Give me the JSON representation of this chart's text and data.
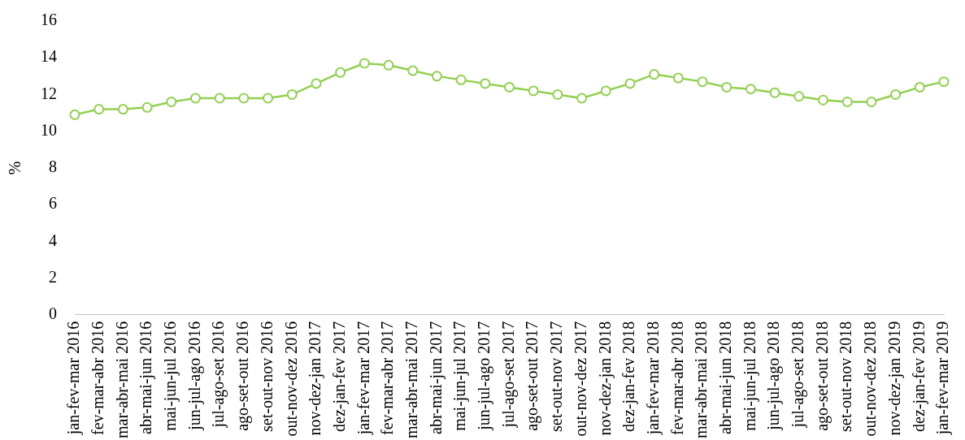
{
  "chart_data": {
    "type": "line",
    "ylabel": "%",
    "categories": [
      "jan-fev-mar 2016",
      "fev-mar-abr 2016",
      "mar-abr-mai 2016",
      "abr-mai-jun 2016",
      "mai-jun-jul 2016",
      "jun-jul-ago 2016",
      "jul-ago-set 2016",
      "ago-set-out 2016",
      "set-out-nov 2016",
      "out-nov-dez 2016",
      "nov-dez-jan 2017",
      "dez-jan-fev 2017",
      "jan-fev-mar 2017",
      "fev-mar-abr 2017",
      "mar-abr-mai 2017",
      "abr-mai-jun 2017",
      "mai-jun-jul 2017",
      "jun-jul-ago 2017",
      "jul-ago-set 2017",
      "ago-set-out 2017",
      "set-out-nov 2017",
      "out-nov-dez 2017",
      "nov-dez-jan 2018",
      "dez-jan-fev 2018",
      "jan-fev-mar 2018",
      "fev-mar-abr 2018",
      "mar-abr-mai 2018",
      "abr-mai-jun 2018",
      "mai-jun-jul 2018",
      "jun-jul-ago 2018",
      "jul-ago-set 2018",
      "ago-set-out 2018",
      "set-out-nov 2018",
      "out-nov-dez 2018",
      "nov-dez-jan 2019",
      "dez-jan-fev 2019",
      "jan-fev-mar 2019"
    ],
    "series": [
      {
        "color": "#92d050",
        "values": [
          10.9,
          11.2,
          11.2,
          11.3,
          11.6,
          11.8,
          11.8,
          11.8,
          11.8,
          12.0,
          12.6,
          13.2,
          13.7,
          13.6,
          13.3,
          13.0,
          12.8,
          12.6,
          12.4,
          12.2,
          12.0,
          11.8,
          12.2,
          12.6,
          13.1,
          12.9,
          12.7,
          12.4,
          12.3,
          12.1,
          11.9,
          11.7,
          11.6,
          11.6,
          12.0,
          12.4,
          12.7
        ]
      }
    ],
    "ylim": [
      0,
      16
    ],
    "yticks": [
      0,
      2,
      4,
      6,
      8,
      10,
      12,
      14,
      16
    ],
    "grid": false,
    "legend": false,
    "marker": "circle",
    "line_style": "solid"
  }
}
